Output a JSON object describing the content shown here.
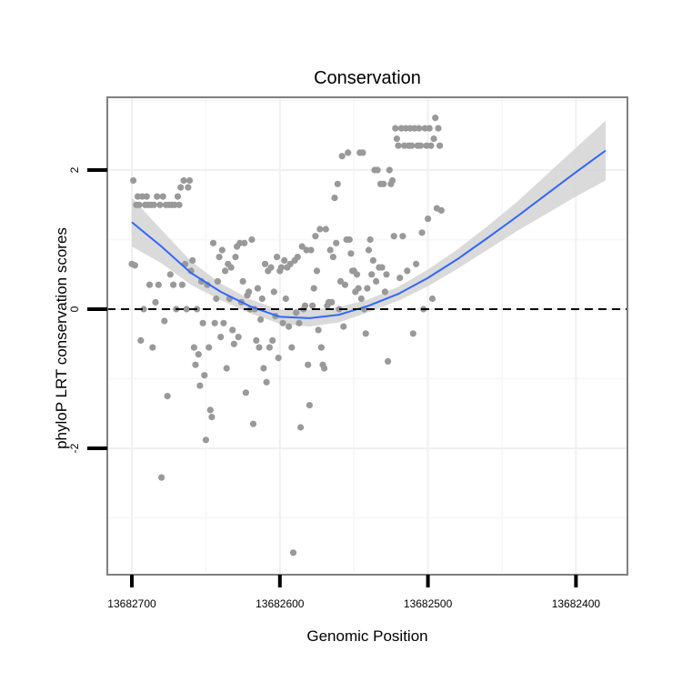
{
  "chart_data": {
    "type": "scatter",
    "title": "Conservation",
    "xlabel": "Genomic Position",
    "ylabel": "phyloP LRT conservation scores",
    "x_reversed": true,
    "xlim": [
      13682700,
      13682365
    ],
    "ylim": [
      -3.7,
      3.0
    ],
    "xticks": [
      13682700,
      13682600,
      13682500,
      13682400
    ],
    "xtick_labels": [
      "13682700",
      "13682600",
      "13682500",
      "13682400"
    ],
    "yticks": [
      2,
      0,
      -2
    ],
    "ytick_labels": [
      "2",
      "0",
      "-2"
    ],
    "grid": true,
    "reference_line": {
      "y": 0,
      "style": "dashed"
    },
    "colors": {
      "points": "#999999",
      "smooth": "#3366ff",
      "ribbon": "#d3d3d3",
      "panel_border": "#7f7f7f"
    },
    "series": [
      {
        "points": [
          [
            13682700,
            0.65
          ],
          [
            13682699,
            1.85
          ],
          [
            13682698,
            0.63
          ],
          [
            13682697,
            1.5
          ],
          [
            13682696,
            1.62
          ],
          [
            13682695,
            1.5
          ],
          [
            13682694,
            -0.45
          ],
          [
            13682693,
            1.62
          ],
          [
            13682692,
            0.0
          ],
          [
            13682691,
            1.5
          ],
          [
            13682690,
            1.62
          ],
          [
            13682689,
            1.5
          ],
          [
            13682688,
            0.35
          ],
          [
            13682687,
            1.5
          ],
          [
            13682686,
            -0.55
          ],
          [
            13682685,
            1.5
          ],
          [
            13682684,
            0.1
          ],
          [
            13682683,
            1.62
          ],
          [
            13682682,
            0.35
          ],
          [
            13682681,
            1.5
          ],
          [
            13682680,
            -2.42
          ],
          [
            13682679,
            1.62
          ],
          [
            13682678,
            -0.17
          ],
          [
            13682677,
            1.5
          ],
          [
            13682676,
            -1.25
          ],
          [
            13682675,
            1.5
          ],
          [
            13682674,
            0.5
          ],
          [
            13682673,
            1.5
          ],
          [
            13682672,
            0.35
          ],
          [
            13682671,
            1.5
          ],
          [
            13682670,
            0.0
          ],
          [
            13682669,
            1.62
          ],
          [
            13682668,
            1.5
          ],
          [
            13682667,
            1.75
          ],
          [
            13682666,
            0.35
          ],
          [
            13682665,
            1.85
          ],
          [
            13682664,
            0.65
          ],
          [
            13682663,
            0.0
          ],
          [
            13682662,
            1.75
          ],
          [
            13682661,
            1.85
          ],
          [
            13682660,
            0.55
          ],
          [
            13682659,
            0.7
          ],
          [
            13682658,
            -0.55
          ],
          [
            13682657,
            -0.8
          ],
          [
            13682656,
            0.0
          ],
          [
            13682655,
            -0.65
          ],
          [
            13682654,
            -1.1
          ],
          [
            13682653,
            0.4
          ],
          [
            13682652,
            -0.2
          ],
          [
            13682651,
            -0.95
          ],
          [
            13682650,
            -1.88
          ],
          [
            13682649,
            0.35
          ],
          [
            13682648,
            -0.55
          ],
          [
            13682647,
            -1.45
          ],
          [
            13682646,
            -1.55
          ],
          [
            13682645,
            0.95
          ],
          [
            13682644,
            -0.2
          ],
          [
            13682643,
            0.15
          ],
          [
            13682642,
            0.4
          ],
          [
            13682641,
            0.75
          ],
          [
            13682640,
            -0.4
          ],
          [
            13682639,
            0.85
          ],
          [
            13682638,
            -0.2
          ],
          [
            13682637,
            0.55
          ],
          [
            13682636,
            -0.85
          ],
          [
            13682635,
            0.65
          ],
          [
            13682634,
            0.15
          ],
          [
            13682633,
            0.6
          ],
          [
            13682632,
            -0.3
          ],
          [
            13682631,
            -0.5
          ],
          [
            13682630,
            0.75
          ],
          [
            13682629,
            0.9
          ],
          [
            13682628,
            -0.4
          ],
          [
            13682627,
            0.95
          ],
          [
            13682626,
            0.1
          ],
          [
            13682625,
            0.4
          ],
          [
            13682624,
            0.95
          ],
          [
            13682623,
            -1.2
          ],
          [
            13682622,
            0.2
          ],
          [
            13682621,
            0.25
          ],
          [
            13682620,
            0.0
          ],
          [
            13682619,
            1.0
          ],
          [
            13682618,
            -1.65
          ],
          [
            13682617,
            0.0
          ],
          [
            13682616,
            -0.45
          ],
          [
            13682615,
            0.3
          ],
          [
            13682614,
            -0.55
          ],
          [
            13682613,
            -0.15
          ],
          [
            13682612,
            0.15
          ],
          [
            13682611,
            -0.85
          ],
          [
            13682610,
            0.65
          ],
          [
            13682609,
            -1.05
          ],
          [
            13682608,
            0.55
          ],
          [
            13682607,
            -0.55
          ],
          [
            13682606,
            0.6
          ],
          [
            13682605,
            -0.45
          ],
          [
            13682604,
            0.25
          ],
          [
            13682603,
            -0.1
          ],
          [
            13682602,
            0.75
          ],
          [
            13682601,
            -0.7
          ],
          [
            13682600,
            0.55
          ],
          [
            13682599,
            0.6
          ],
          [
            13682598,
            -0.2
          ],
          [
            13682597,
            0.7
          ],
          [
            13682596,
            0.15
          ],
          [
            13682595,
            0.6
          ],
          [
            13682594,
            -0.25
          ],
          [
            13682593,
            0.65
          ],
          [
            13682592,
            -0.55
          ],
          [
            13682591,
            -3.5
          ],
          [
            13682590,
            0.7
          ],
          [
            13682589,
            -0.05
          ],
          [
            13682588,
            0.75
          ],
          [
            13682587,
            -0.2
          ],
          [
            13682586,
            -1.7
          ],
          [
            13682585,
            0.9
          ],
          [
            13682584,
            0.0
          ],
          [
            13682583,
            0.05
          ],
          [
            13682582,
            0.85
          ],
          [
            13682581,
            -0.8
          ],
          [
            13682580,
            -1.38
          ],
          [
            13682579,
            0.85
          ],
          [
            13682578,
            0.05
          ],
          [
            13682577,
            0.3
          ],
          [
            13682576,
            1.05
          ],
          [
            13682575,
            0.55
          ],
          [
            13682574,
            -0.3
          ],
          [
            13682573,
            1.15
          ],
          [
            13682572,
            -0.55
          ],
          [
            13682571,
            -0.8
          ],
          [
            13682570,
            -0.85
          ],
          [
            13682569,
            1.15
          ],
          [
            13682568,
            0.05
          ],
          [
            13682567,
            0.1
          ],
          [
            13682566,
            0.85
          ],
          [
            13682565,
            0.1
          ],
          [
            13682564,
            0.75
          ],
          [
            13682563,
            1.6
          ],
          [
            13682562,
            0.95
          ],
          [
            13682561,
            1.8
          ],
          [
            13682560,
            0.0
          ],
          [
            13682559,
            0.4
          ],
          [
            13682558,
            2.2
          ],
          [
            13682557,
            -0.25
          ],
          [
            13682556,
            0.35
          ],
          [
            13682555,
            1.0
          ],
          [
            13682554,
            2.25
          ],
          [
            13682553,
            1.0
          ],
          [
            13682552,
            0.8
          ],
          [
            13682551,
            0.55
          ],
          [
            13682550,
            0.55
          ],
          [
            13682549,
            0.25
          ],
          [
            13682548,
            0.5
          ],
          [
            13682547,
            0.3
          ],
          [
            13682546,
            2.25
          ],
          [
            13682545,
            0.15
          ],
          [
            13682544,
            2.25
          ],
          [
            13682543,
            0.0
          ],
          [
            13682542,
            -0.35
          ],
          [
            13682541,
            0.3
          ],
          [
            13682540,
            0.85
          ],
          [
            13682539,
            1.0
          ],
          [
            13682538,
            0.5
          ],
          [
            13682537,
            0.7
          ],
          [
            13682536,
            2.0
          ],
          [
            13682535,
            0.4
          ],
          [
            13682534,
            2.0
          ],
          [
            13682533,
            0.6
          ],
          [
            13682532,
            1.8
          ],
          [
            13682531,
            0.6
          ],
          [
            13682530,
            1.8
          ],
          [
            13682529,
            0.25
          ],
          [
            13682528,
            0.5
          ],
          [
            13682527,
            -0.75
          ],
          [
            13682526,
            2.0
          ],
          [
            13682525,
            1.8
          ],
          [
            13682524,
            1.85
          ],
          [
            13682523,
            1.05
          ],
          [
            13682522,
            2.6
          ],
          [
            13682521,
            2.45
          ],
          [
            13682520,
            2.35
          ],
          [
            13682519,
            0.45
          ],
          [
            13682518,
            2.6
          ],
          [
            13682517,
            1.05
          ],
          [
            13682516,
            2.35
          ],
          [
            13682515,
            2.6
          ],
          [
            13682514,
            0.55
          ],
          [
            13682513,
            2.35
          ],
          [
            13682512,
            2.6
          ],
          [
            13682511,
            2.35
          ],
          [
            13682510,
            -0.35
          ],
          [
            13682509,
            2.6
          ],
          [
            13682508,
            0.65
          ],
          [
            13682507,
            2.35
          ],
          [
            13682506,
            2.6
          ],
          [
            13682505,
            2.35
          ],
          [
            13682504,
            1.1
          ],
          [
            13682503,
            0.0
          ],
          [
            13682502,
            2.6
          ],
          [
            13682501,
            2.35
          ],
          [
            13682500,
            1.3
          ],
          [
            13682499,
            2.6
          ],
          [
            13682498,
            2.35
          ],
          [
            13682497,
            0.15
          ],
          [
            13682496,
            2.45
          ],
          [
            13682495,
            2.75
          ],
          [
            13682494,
            1.45
          ],
          [
            13682493,
            2.6
          ],
          [
            13682492,
            2.35
          ],
          [
            13682491,
            1.42
          ]
        ]
      }
    ],
    "smooth": {
      "x": [
        13682700,
        13682680,
        13682660,
        13682640,
        13682620,
        13682600,
        13682580,
        13682560,
        13682540,
        13682520,
        13682500,
        13682480,
        13682460,
        13682440,
        13682420,
        13682400,
        13682380
      ],
      "y": [
        1.25,
        0.9,
        0.52,
        0.25,
        0.04,
        -0.11,
        -0.13,
        -0.08,
        0.05,
        0.22,
        0.45,
        0.72,
        1.02,
        1.33,
        1.65,
        1.97,
        2.28
      ],
      "lower": [
        0.9,
        0.66,
        0.35,
        0.13,
        -0.06,
        -0.21,
        -0.25,
        -0.19,
        -0.04,
        0.12,
        0.33,
        0.58,
        0.85,
        1.12,
        1.37,
        1.62,
        1.85
      ],
      "upper": [
        1.6,
        1.14,
        0.69,
        0.37,
        0.14,
        -0.01,
        -0.01,
        0.03,
        0.14,
        0.32,
        0.57,
        0.86,
        1.19,
        1.54,
        1.93,
        2.32,
        2.71
      ]
    }
  }
}
